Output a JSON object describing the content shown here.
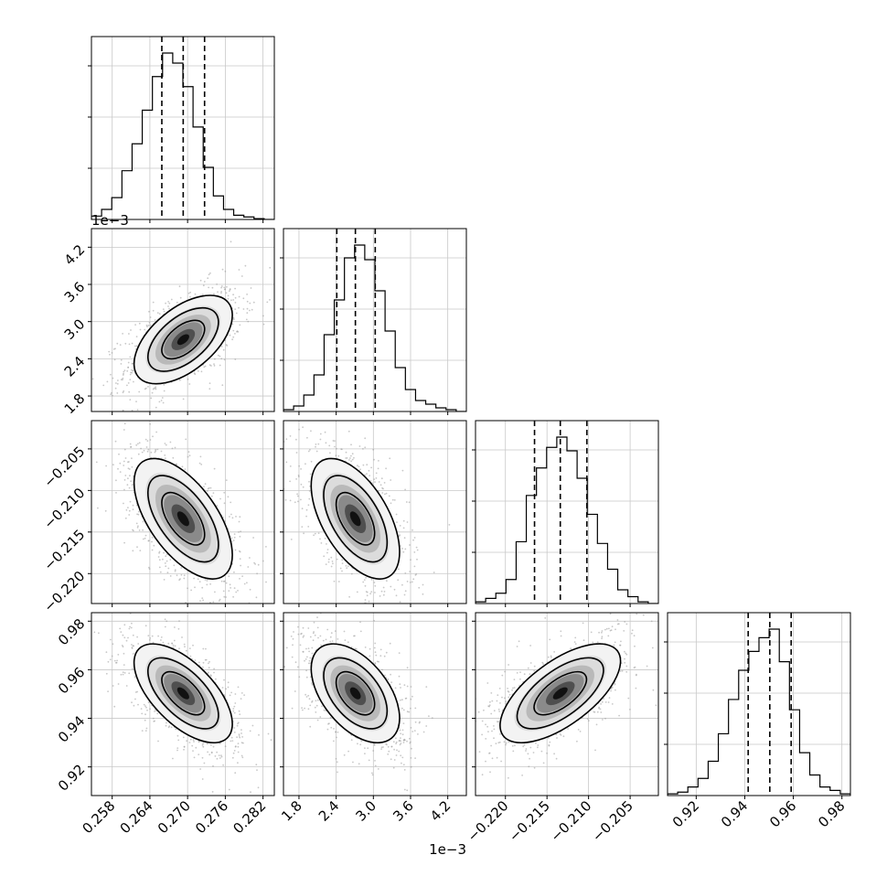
{
  "chart_data": {
    "type": "corner",
    "parameters": [
      {
        "ticks": [
          "0.258",
          "0.264",
          "0.270",
          "0.276",
          "0.282"
        ],
        "tick_values": [
          0.258,
          0.264,
          0.27,
          0.276,
          0.282
        ],
        "range": [
          0.2547,
          0.2838
        ],
        "multiplier": "",
        "quantiles": [
          0.2659,
          0.2693,
          0.2727
        ],
        "hist": [
          0.02,
          0.06,
          0.13,
          0.29,
          0.45,
          0.65,
          0.85,
          0.99,
          0.93,
          0.79,
          0.55,
          0.31,
          0.14,
          0.06,
          0.025,
          0.015,
          0.005,
          0.0
        ]
      },
      {
        "ticks": [
          "1.8",
          "2.4",
          "3.0",
          "3.6",
          "4.2"
        ],
        "tick_values": [
          1.8,
          2.4,
          3.0,
          3.6,
          4.2
        ],
        "range": [
          1.55,
          4.5
        ],
        "multiplier": "1e−3",
        "quantiles": [
          2.41,
          2.71,
          3.03
        ],
        "hist": [
          0.01,
          0.03,
          0.09,
          0.2,
          0.42,
          0.61,
          0.84,
          0.91,
          0.83,
          0.66,
          0.44,
          0.24,
          0.12,
          0.06,
          0.04,
          0.02,
          0.01,
          0.0
        ]
      },
      {
        "ticks": [
          "−0.220",
          "−0.215",
          "−0.210",
          "−0.205"
        ],
        "tick_values": [
          -0.22,
          -0.215,
          -0.21,
          -0.205
        ],
        "range": [
          -0.2236,
          -0.2016
        ],
        "multiplier": "",
        "quantiles": [
          -0.2165,
          -0.2134,
          -0.2102
        ],
        "hist": [
          0.01,
          0.03,
          0.06,
          0.14,
          0.36,
          0.63,
          0.79,
          0.91,
          0.97,
          0.89,
          0.73,
          0.52,
          0.35,
          0.2,
          0.08,
          0.04,
          0.01,
          0.0
        ]
      },
      {
        "ticks": [
          "0.92",
          "0.94",
          "0.96",
          "0.98"
        ],
        "tick_values": [
          0.92,
          0.94,
          0.96,
          0.98
        ],
        "range": [
          0.9082,
          0.9835
        ],
        "multiplier": "",
        "quantiles": [
          0.9414,
          0.9503,
          0.9591
        ],
        "hist": [
          0.01,
          0.02,
          0.05,
          0.1,
          0.2,
          0.36,
          0.56,
          0.73,
          0.84,
          0.92,
          0.97,
          0.78,
          0.5,
          0.25,
          0.12,
          0.05,
          0.03,
          0.01
        ]
      }
    ],
    "pairs": [
      {
        "x": 0,
        "y": 1,
        "correlation": 0.55
      },
      {
        "x": 0,
        "y": 2,
        "correlation": -0.6
      },
      {
        "x": 1,
        "y": 2,
        "correlation": -0.55
      },
      {
        "x": 0,
        "y": 3,
        "correlation": -0.62
      },
      {
        "x": 1,
        "y": 3,
        "correlation": -0.5
      },
      {
        "x": 2,
        "y": 3,
        "correlation": 0.65
      }
    ],
    "first_hist_offset_label": "1e−3",
    "grid": true,
    "colors": {
      "contour": "#000000",
      "points": "#9a9a9a",
      "grid": "#c8c8c8",
      "quantile_line": "#000000"
    }
  }
}
